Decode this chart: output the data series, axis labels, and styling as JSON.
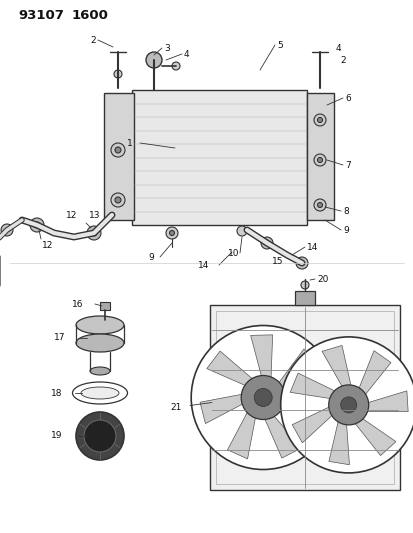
{
  "title": "93107   1600",
  "lc": "#333333",
  "bg": "#ffffff",
  "fs": 6.5,
  "fig_w": 4.14,
  "fig_h": 5.33,
  "dpi": 100
}
